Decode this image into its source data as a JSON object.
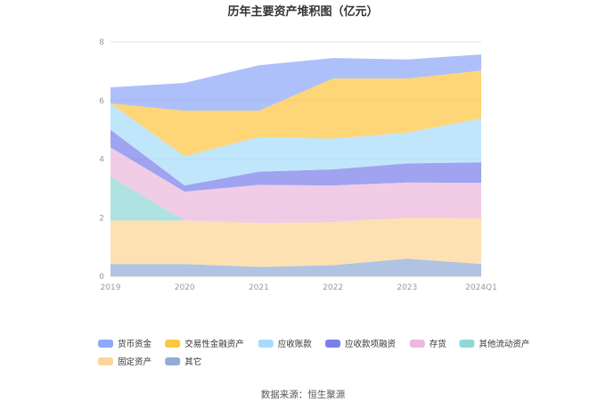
{
  "chart_data": {
    "type": "area",
    "title": "历年主要资产堆积图（亿元）",
    "categories": [
      "2019",
      "2020",
      "2021",
      "2022",
      "2023",
      "2024Q1"
    ],
    "ylim": [
      0,
      8
    ],
    "yticks": [
      0,
      2,
      4,
      6,
      8
    ],
    "grid": true,
    "legend_position": "bottom",
    "series": [
      {
        "name": "其它",
        "color": "#91acd8",
        "values": [
          0.42,
          0.42,
          0.32,
          0.38,
          0.6,
          0.42
        ]
      },
      {
        "name": "固定资产",
        "color": "#fcd696",
        "values": [
          1.48,
          1.48,
          1.5,
          1.47,
          1.4,
          1.57
        ]
      },
      {
        "name": "其他流动资产",
        "color": "#8fd8d6",
        "values": [
          1.5,
          0.0,
          0.0,
          0.0,
          0.0,
          0.0
        ]
      },
      {
        "name": "存货",
        "color": "#ecb9dd",
        "values": [
          1.0,
          0.99,
          1.3,
          1.25,
          1.2,
          1.2
        ]
      },
      {
        "name": "应收款项融资",
        "color": "#7a80ea",
        "values": [
          0.6,
          0.21,
          0.45,
          0.55,
          0.65,
          0.7
        ]
      },
      {
        "name": "应收账款",
        "color": "#a8ddfa",
        "values": [
          0.9,
          1.0,
          1.18,
          1.05,
          1.05,
          1.5
        ]
      },
      {
        "name": "交易性金融资产",
        "color": "#fdc643",
        "values": [
          0.0,
          1.55,
          0.9,
          2.05,
          1.85,
          1.63
        ]
      },
      {
        "name": "货币资金",
        "color": "#8fa8f7",
        "values": [
          0.55,
          0.95,
          1.55,
          0.7,
          0.65,
          0.55
        ]
      }
    ]
  },
  "legend": {
    "items": [
      "货币资金",
      "交易性金融资产",
      "应收账款",
      "应收款项融资",
      "存货",
      "其他流动资产",
      "固定资产",
      "其它"
    ]
  },
  "source_text": "数据来源：恒生聚源"
}
